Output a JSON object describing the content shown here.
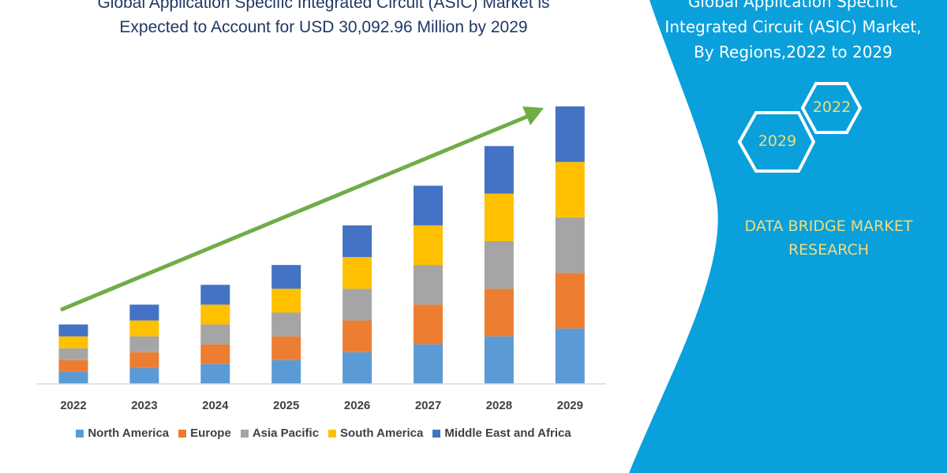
{
  "header": {
    "title_line1": "Global Application Specific Integrated Circuit (ASIC) Market is",
    "title_line2": "Expected to Account for USD 30,092.96 Million by 2029"
  },
  "side_panel": {
    "title_line1": "Global Application Specific",
    "title_line2": "Integrated Circuit (ASIC) Market,",
    "title_line3": "By Regions,2022 to 2029",
    "hex_top": "2022",
    "hex_bottom": "2029",
    "brand_line1": "DATA BRIDGE MARKET",
    "brand_line2": "RESEARCH",
    "panel_color": "#0aa0dc",
    "accent_text_color": "#f2dc78"
  },
  "chart_data": {
    "type": "bar",
    "stacked": true,
    "categories": [
      "2022",
      "2023",
      "2024",
      "2025",
      "2026",
      "2027",
      "2028",
      "2029"
    ],
    "series": [
      {
        "name": "North America",
        "color": "#5b9bd5",
        "values": [
          15,
          20,
          25,
          30,
          40,
          50,
          60,
          70
        ]
      },
      {
        "name": "Europe",
        "color": "#ed7d31",
        "values": [
          15,
          20,
          25,
          30,
          40,
          50,
          60,
          70
        ]
      },
      {
        "name": "Asia Pacific",
        "color": "#a5a5a5",
        "values": [
          15,
          20,
          25,
          30,
          40,
          50,
          60,
          70
        ]
      },
      {
        "name": "South America",
        "color": "#ffc000",
        "values": [
          15,
          20,
          25,
          30,
          40,
          50,
          60,
          70
        ]
      },
      {
        "name": "Middle East and Africa",
        "color": "#4472c4",
        "values": [
          15,
          20,
          25,
          30,
          40,
          50,
          60,
          70
        ]
      }
    ],
    "y_axis_shown": false,
    "grid": false,
    "legend_position": "bottom",
    "trend_arrow_color": "#70ad47"
  }
}
